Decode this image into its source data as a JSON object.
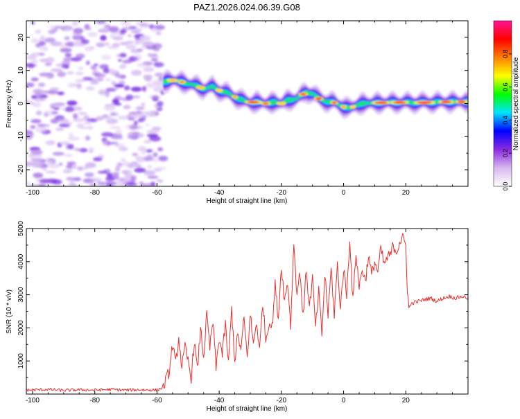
{
  "chart_data": [
    {
      "type": "heatmap",
      "title": "PAZ1.2026.024.06.39.G08",
      "xlabel": "Height of straight line (km)",
      "ylabel": "Frequency (Hz)",
      "xlim": [
        -102,
        40
      ],
      "ylim": [
        -25,
        25
      ],
      "xticks": [
        -100,
        -80,
        -60,
        -40,
        -20,
        0,
        20
      ],
      "xtick_labels": [
        "-100",
        "-80",
        "-60",
        "-40",
        "-20",
        "0",
        "20"
      ],
      "yticks": [
        -20,
        -10,
        0,
        10,
        20
      ],
      "ytick_labels": [
        "-20",
        "-10",
        "0",
        "10",
        "20"
      ],
      "colorbar": {
        "label": "Normalized spectral amplitude",
        "range": [
          0.0,
          1.0
        ],
        "ticks": [
          0.0,
          0.2,
          0.4,
          0.6,
          0.8
        ],
        "tick_labels": [
          "0.0",
          "0.2",
          "0.4",
          "0.6",
          "0.8"
        ],
        "colors": [
          "#ffffff",
          "#d8b8f0",
          "#8a2be2",
          "#0000ff",
          "#00e5ff",
          "#00ff00",
          "#ffff00",
          "#ff8000",
          "#ff0000",
          "#ff1493"
        ]
      },
      "noise_region_km": [
        -102,
        -58
      ],
      "ridge": {
        "x": [
          -58,
          -55,
          -52,
          -48,
          -45,
          -42,
          -40,
          -37,
          -35,
          -32,
          -30,
          -28,
          -25,
          -22,
          -20,
          -18,
          -15,
          -12,
          -10,
          -8,
          -5,
          -3,
          -1,
          0,
          2,
          4,
          6,
          10,
          15,
          20,
          25,
          30,
          35,
          40
        ],
        "y": [
          6.5,
          7,
          6.5,
          5.5,
          4.5,
          5,
          4,
          3,
          2,
          0.8,
          0.3,
          0.5,
          0,
          0.5,
          0,
          1,
          1.5,
          3.5,
          3,
          1.5,
          0.5,
          0.3,
          -0.5,
          -1,
          -1.5,
          -0.5,
          0,
          0.2,
          0.3,
          0.3,
          0.3,
          0.4,
          0.5,
          0.5
        ]
      }
    },
    {
      "type": "line",
      "xlabel": "Height of straight line (km)",
      "ylabel": "SNR (10 * v/v)",
      "xlim": [
        -102,
        40
      ],
      "ylim": [
        0,
        5000
      ],
      "xticks": [
        -100,
        -80,
        -60,
        -40,
        -20,
        0,
        20
      ],
      "xtick_labels": [
        "-100",
        "-80",
        "-60",
        "-40",
        "-20",
        "0",
        "20"
      ],
      "yticks": [
        1000,
        2000,
        3000,
        4000,
        5000
      ],
      "ytick_labels": [
        "1000",
        "2000",
        "3000",
        "4000",
        "5000"
      ],
      "series": [
        {
          "name": "SNR",
          "color": "#e8302c",
          "x": [
            -102,
            -95,
            -90,
            -85,
            -80,
            -75,
            -70,
            -65,
            -60,
            -58,
            -56,
            -55,
            -54,
            -53,
            -52,
            -51,
            -50,
            -49,
            -48,
            -47,
            -46,
            -45,
            -44,
            -43,
            -42,
            -41,
            -40,
            -39,
            -38,
            -37,
            -36,
            -35,
            -34,
            -33,
            -32,
            -31,
            -30,
            -29,
            -28,
            -27,
            -26,
            -25,
            -24,
            -23,
            -22,
            -21,
            -20,
            -19,
            -18,
            -17,
            -16,
            -15,
            -14,
            -13,
            -12,
            -11,
            -10,
            -9,
            -8,
            -7,
            -6,
            -5,
            -4,
            -3,
            -2,
            -1,
            0,
            1,
            2,
            3,
            4,
            5,
            6,
            7,
            8,
            9,
            10,
            11,
            12,
            13,
            14,
            15,
            16,
            17,
            18,
            19,
            20,
            20.5,
            21,
            22,
            24,
            26,
            28,
            30,
            32,
            34,
            36,
            38,
            40
          ],
          "y": [
            120,
            140,
            110,
            130,
            120,
            140,
            120,
            130,
            120,
            200,
            700,
            1500,
            900,
            1700,
            800,
            1400,
            1000,
            500,
            1600,
            700,
            2000,
            1100,
            2400,
            1400,
            2200,
            800,
            1700,
            1200,
            2100,
            900,
            2600,
            1000,
            1800,
            1300,
            2300,
            1100,
            2400,
            1500,
            2200,
            1300,
            2800,
            1600,
            2200,
            2000,
            3300,
            2300,
            3900,
            2800,
            3400,
            2100,
            4600,
            3000,
            3700,
            2300,
            3800,
            2600,
            3500,
            2000,
            3100,
            1800,
            3600,
            2400,
            3800,
            2400,
            3900,
            2600,
            3800,
            3000,
            4700,
            2800,
            4300,
            3200,
            3800,
            3400,
            4200,
            3600,
            4000,
            3700,
            4400,
            3900,
            4100,
            4200,
            4500,
            4300,
            4600,
            4700,
            4500,
            3200,
            2600,
            2750,
            2800,
            2850,
            2900,
            2800,
            2900,
            2950,
            2900,
            2950,
            2900
          ]
        }
      ]
    }
  ]
}
